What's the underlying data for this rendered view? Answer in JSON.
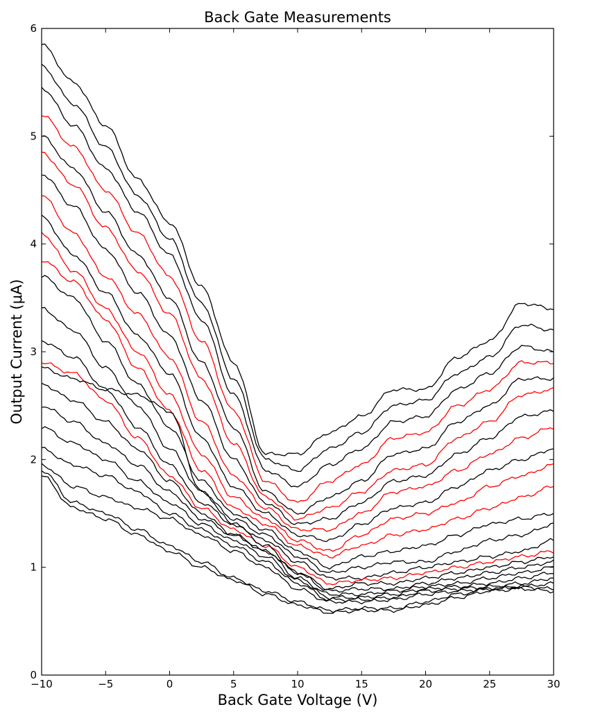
{
  "chart_data": {
    "type": "line",
    "title": "Back Gate Measurements",
    "xlabel": "Back Gate Voltage (V)",
    "ylabel": "Output Current (μA)",
    "xlim": [
      -10,
      30
    ],
    "ylim": [
      0,
      6
    ],
    "x_ticks": [
      -10,
      -5,
      0,
      5,
      10,
      15,
      20,
      25,
      30
    ],
    "x_tick_labels": [
      "−10",
      "−5",
      "0",
      "5",
      "10",
      "15",
      "20",
      "25",
      "30"
    ],
    "y_ticks": [
      0,
      1,
      2,
      3,
      4,
      5,
      6
    ],
    "y_tick_labels": [
      "0",
      "1",
      "2",
      "3",
      "4",
      "5",
      "6"
    ],
    "grid": false,
    "legend": "none",
    "colors": {
      "normal": "#000000",
      "highlight": "#ff0000"
    },
    "x": [
      -10,
      -7.5,
      -5,
      -2.5,
      0,
      2.5,
      5,
      7.5,
      10,
      12.5,
      15,
      17.5,
      20,
      22.5,
      25,
      27.5,
      30
    ],
    "series": [
      {
        "color": "black",
        "values": [
          5.85,
          5.5,
          5.1,
          4.6,
          4.2,
          3.6,
          2.9,
          2.05,
          2.05,
          2.25,
          2.4,
          2.65,
          2.65,
          2.95,
          3.1,
          3.45,
          3.4
        ]
      },
      {
        "color": "black",
        "values": [
          5.65,
          5.3,
          4.9,
          4.45,
          4.05,
          3.45,
          2.75,
          2.0,
          1.9,
          2.1,
          2.25,
          2.5,
          2.55,
          2.8,
          2.95,
          3.25,
          3.2
        ]
      },
      {
        "color": "black",
        "values": [
          5.45,
          5.1,
          4.7,
          4.3,
          3.9,
          3.3,
          2.6,
          1.9,
          1.75,
          1.95,
          2.1,
          2.35,
          2.4,
          2.65,
          2.8,
          3.05,
          3.0
        ]
      },
      {
        "color": "red",
        "values": [
          5.2,
          4.9,
          4.5,
          4.1,
          3.7,
          3.1,
          2.45,
          1.8,
          1.6,
          1.8,
          1.95,
          2.2,
          2.25,
          2.5,
          2.65,
          2.9,
          2.9
        ]
      },
      {
        "color": "black",
        "values": [
          5.0,
          4.7,
          4.3,
          3.9,
          3.5,
          2.9,
          2.3,
          1.7,
          1.5,
          1.65,
          1.8,
          2.05,
          2.1,
          2.35,
          2.5,
          2.75,
          2.75
        ]
      },
      {
        "color": "red",
        "values": [
          4.85,
          4.55,
          4.15,
          3.75,
          3.35,
          2.75,
          2.15,
          1.65,
          1.45,
          1.55,
          1.7,
          1.9,
          1.95,
          2.2,
          2.35,
          2.6,
          2.65
        ]
      },
      {
        "color": "black",
        "values": [
          4.65,
          4.35,
          3.95,
          3.55,
          3.15,
          2.55,
          2.0,
          1.6,
          1.4,
          1.45,
          1.6,
          1.8,
          1.85,
          2.05,
          2.2,
          2.4,
          2.45
        ]
      },
      {
        "color": "red",
        "values": [
          4.45,
          4.1,
          3.7,
          3.35,
          2.95,
          2.35,
          1.85,
          1.55,
          1.35,
          1.35,
          1.5,
          1.7,
          1.75,
          1.9,
          2.05,
          2.2,
          2.3
        ]
      },
      {
        "color": "black",
        "values": [
          4.25,
          3.9,
          3.55,
          3.15,
          2.8,
          2.2,
          1.75,
          1.5,
          1.3,
          1.25,
          1.4,
          1.55,
          1.6,
          1.75,
          1.9,
          2.0,
          2.1
        ]
      },
      {
        "color": "red",
        "values": [
          4.1,
          3.75,
          3.4,
          3.0,
          2.6,
          2.05,
          1.65,
          1.45,
          1.25,
          1.15,
          1.3,
          1.45,
          1.5,
          1.6,
          1.75,
          1.85,
          1.95
        ]
      },
      {
        "color": "red",
        "values": [
          3.85,
          3.65,
          3.3,
          2.85,
          2.45,
          1.9,
          1.55,
          1.4,
          1.2,
          1.1,
          1.2,
          1.3,
          1.35,
          1.45,
          1.55,
          1.65,
          1.75
        ]
      },
      {
        "color": "black",
        "values": [
          3.7,
          3.5,
          3.1,
          2.7,
          2.3,
          1.8,
          1.5,
          1.35,
          1.15,
          1.0,
          1.1,
          1.15,
          1.2,
          1.3,
          1.4,
          1.45,
          1.5
        ]
      },
      {
        "color": "black",
        "values": [
          3.4,
          3.2,
          2.85,
          2.5,
          2.1,
          1.7,
          1.45,
          1.3,
          1.1,
          0.95,
          1.0,
          1.05,
          1.05,
          1.15,
          1.25,
          1.3,
          1.4
        ]
      },
      {
        "color": "black",
        "values": [
          3.1,
          2.95,
          2.65,
          2.3,
          1.95,
          1.6,
          1.4,
          1.25,
          1.05,
          0.9,
          0.9,
          0.95,
          1.0,
          1.05,
          1.1,
          1.15,
          1.25
        ]
      },
      {
        "color": "red",
        "values": [
          2.9,
          2.8,
          2.55,
          2.2,
          1.85,
          1.55,
          1.35,
          1.2,
          1.0,
          0.85,
          0.88,
          0.9,
          0.95,
          1.0,
          1.05,
          1.1,
          1.15
        ]
      },
      {
        "color": "black",
        "values": [
          2.85,
          2.75,
          2.65,
          2.6,
          2.45,
          1.7,
          1.4,
          1.2,
          0.95,
          0.8,
          0.85,
          0.85,
          0.9,
          0.95,
          1.0,
          1.05,
          1.1
        ]
      },
      {
        "color": "black",
        "values": [
          2.7,
          2.55,
          2.35,
          2.1,
          1.8,
          1.5,
          1.3,
          1.15,
          0.95,
          0.78,
          0.8,
          0.8,
          0.85,
          0.9,
          0.95,
          1.0,
          1.05
        ]
      },
      {
        "color": "black",
        "values": [
          2.5,
          2.35,
          2.15,
          1.95,
          1.7,
          1.45,
          1.3,
          1.15,
          0.9,
          0.75,
          0.75,
          0.78,
          0.82,
          0.85,
          0.9,
          0.95,
          1.0
        ]
      },
      {
        "color": "black",
        "values": [
          2.3,
          2.15,
          2.0,
          1.8,
          1.6,
          1.4,
          1.25,
          1.1,
          0.88,
          0.72,
          0.72,
          0.75,
          0.8,
          0.82,
          0.85,
          0.9,
          0.95
        ]
      },
      {
        "color": "black",
        "values": [
          2.1,
          1.95,
          1.85,
          1.7,
          1.5,
          1.35,
          1.2,
          1.05,
          0.85,
          0.7,
          0.7,
          0.72,
          0.78,
          0.8,
          0.82,
          0.85,
          0.9
        ]
      },
      {
        "color": "black",
        "values": [
          1.95,
          1.75,
          1.65,
          1.55,
          1.45,
          1.3,
          1.15,
          1.0,
          0.8,
          0.68,
          0.68,
          0.7,
          0.75,
          0.78,
          0.8,
          0.82,
          0.85
        ]
      },
      {
        "color": "black",
        "values": [
          1.9,
          1.6,
          1.5,
          1.35,
          1.2,
          1.05,
          0.9,
          0.78,
          0.68,
          0.6,
          0.62,
          0.62,
          0.68,
          0.75,
          0.8,
          0.82,
          0.8
        ]
      },
      {
        "color": "black",
        "values": [
          1.85,
          1.55,
          1.45,
          1.3,
          1.15,
          1.0,
          0.88,
          0.75,
          0.65,
          0.58,
          0.6,
          0.6,
          0.65,
          0.72,
          0.78,
          0.8,
          0.78
        ]
      }
    ]
  }
}
